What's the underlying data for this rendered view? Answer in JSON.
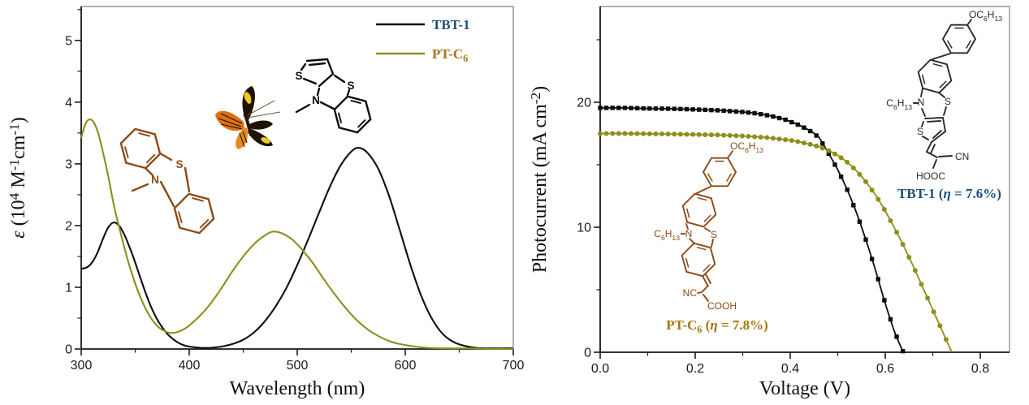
{
  "colors": {
    "axis": "#1a1a1a",
    "frame": "#7d7d7d",
    "black": "#0d0d0d",
    "olive": "#8e8e1c",
    "navy": "#1f4e79",
    "gold": "#a6760e",
    "brown": "#8b4a16",
    "dark": "#2a2a2a"
  },
  "butterfly": {
    "dark": "#1c1206",
    "orange": "#dd7110",
    "orange2": "#e8891a",
    "yellow": "#f3c91b",
    "body": "#241607",
    "antenna": "#6b5a35"
  },
  "legend": {
    "items": [
      {
        "label": "TBT-1",
        "text_color_key": "navy",
        "line_color_key": "black"
      },
      {
        "label": "PT-C_{6}",
        "text_color_key": "gold",
        "line_color_key": "olive"
      }
    ]
  },
  "annotations": {
    "tbt1": {
      "text": "TBT-1 (~{η} = 7.6%)",
      "efficiency": "7.6%"
    },
    "ptc6": {
      "text": "PT-C_{6} (~{η} = 7.8%)",
      "efficiency": "7.8%"
    }
  },
  "structures": {
    "left_ptz": {
      "n": "N",
      "s": "S"
    },
    "left_tbt": {
      "s_thiophene": "S",
      "s_thiazine": "S",
      "n": "N"
    },
    "right_tbt1": {
      "oc6h13": "OC_{6}H_{13}",
      "c6h13": "C_{6}H_{13}",
      "n": "N",
      "s_thiazine": "S",
      "s_thiophene": "S",
      "cn": "CN",
      "hooc": "HOOC"
    },
    "right_ptc6": {
      "oc6h13": "OC_{6}H_{13}",
      "c6h13": "C_{6}H_{13}",
      "n": "N",
      "s": "S",
      "nc": "NC",
      "cooh": "COOH"
    }
  },
  "chart_data": [
    {
      "id": "absorption",
      "type": "line",
      "title": "",
      "xlabel": "Wavelength (nm)",
      "ylabel": "~{ε}  (10^{4} M^{-1}cm^{-1})",
      "xlim": [
        300,
        700
      ],
      "ylim": [
        0,
        5.55
      ],
      "xticks": [
        300,
        400,
        500,
        600,
        700
      ],
      "xtick_labels": [
        "300",
        "400",
        "500",
        "600",
        "700"
      ],
      "xminor": [
        350,
        450,
        550,
        650
      ],
      "yticks": [
        0,
        1,
        2,
        3,
        4,
        5
      ],
      "ytick_labels": [
        "0",
        "1",
        "2",
        "3",
        "4",
        "5"
      ],
      "yminor": [
        0.5,
        1.5,
        2.5,
        3.5,
        4.5,
        5.5
      ],
      "grid": false,
      "legend_position": "top-right-inside",
      "series": [
        {
          "name": "TBT-1",
          "color_key": "black",
          "line_width": 2.1,
          "marker": "none",
          "points": [
            [
              300,
              1.3
            ],
            [
              305,
              1.32
            ],
            [
              310,
              1.4
            ],
            [
              315,
              1.56
            ],
            [
              320,
              1.78
            ],
            [
              325,
              1.97
            ],
            [
              330,
              2.05
            ],
            [
              335,
              2.0
            ],
            [
              340,
              1.85
            ],
            [
              345,
              1.64
            ],
            [
              350,
              1.4
            ],
            [
              355,
              1.14
            ],
            [
              360,
              0.89
            ],
            [
              365,
              0.67
            ],
            [
              370,
              0.49
            ],
            [
              375,
              0.35
            ],
            [
              380,
              0.24
            ],
            [
              385,
              0.16
            ],
            [
              390,
              0.1
            ],
            [
              395,
              0.06
            ],
            [
              400,
              0.04
            ],
            [
              410,
              0.02
            ],
            [
              420,
              0.02
            ],
            [
              430,
              0.04
            ],
            [
              440,
              0.08
            ],
            [
              450,
              0.15
            ],
            [
              460,
              0.27
            ],
            [
              470,
              0.45
            ],
            [
              480,
              0.69
            ],
            [
              490,
              0.99
            ],
            [
              500,
              1.36
            ],
            [
              510,
              1.77
            ],
            [
              520,
              2.2
            ],
            [
              530,
              2.62
            ],
            [
              540,
              2.97
            ],
            [
              550,
              3.2
            ],
            [
              557,
              3.26
            ],
            [
              565,
              3.18
            ],
            [
              575,
              2.92
            ],
            [
              585,
              2.48
            ],
            [
              595,
              1.92
            ],
            [
              605,
              1.35
            ],
            [
              615,
              0.85
            ],
            [
              625,
              0.48
            ],
            [
              635,
              0.24
            ],
            [
              645,
              0.11
            ],
            [
              655,
              0.05
            ],
            [
              665,
              0.02
            ],
            [
              680,
              0.01
            ],
            [
              700,
              0.01
            ]
          ]
        },
        {
          "name": "PT-C_{6}",
          "color_key": "olive",
          "line_width": 2.1,
          "marker": "none",
          "points": [
            [
              300,
              3.42
            ],
            [
              304,
              3.65
            ],
            [
              308,
              3.72
            ],
            [
              312,
              3.66
            ],
            [
              316,
              3.48
            ],
            [
              320,
              3.2
            ],
            [
              325,
              2.8
            ],
            [
              330,
              2.35
            ],
            [
              335,
              1.98
            ],
            [
              340,
              1.64
            ],
            [
              345,
              1.33
            ],
            [
              350,
              1.06
            ],
            [
              355,
              0.83
            ],
            [
              360,
              0.64
            ],
            [
              365,
              0.49
            ],
            [
              370,
              0.38
            ],
            [
              375,
              0.31
            ],
            [
              380,
              0.27
            ],
            [
              385,
              0.26
            ],
            [
              390,
              0.28
            ],
            [
              395,
              0.32
            ],
            [
              400,
              0.38
            ],
            [
              410,
              0.54
            ],
            [
              420,
              0.74
            ],
            [
              430,
              0.99
            ],
            [
              440,
              1.26
            ],
            [
              450,
              1.5
            ],
            [
              460,
              1.7
            ],
            [
              470,
              1.84
            ],
            [
              477,
              1.9
            ],
            [
              485,
              1.88
            ],
            [
              495,
              1.78
            ],
            [
              505,
              1.6
            ],
            [
              515,
              1.38
            ],
            [
              525,
              1.12
            ],
            [
              535,
              0.88
            ],
            [
              545,
              0.66
            ],
            [
              555,
              0.47
            ],
            [
              565,
              0.32
            ],
            [
              575,
              0.21
            ],
            [
              585,
              0.13
            ],
            [
              595,
              0.08
            ],
            [
              605,
              0.05
            ],
            [
              620,
              0.02
            ],
            [
              640,
              0.01
            ],
            [
              660,
              0.01
            ],
            [
              680,
              0.0
            ],
            [
              700,
              0.0
            ]
          ]
        }
      ]
    },
    {
      "id": "jv",
      "type": "line",
      "title": "",
      "xlabel": "Voltage (V)",
      "ylabel": "Photocurrent (mA cm^{-2})",
      "xlim": [
        0,
        0.8615
      ],
      "ylim": [
        0,
        27.66
      ],
      "xticks": [
        0,
        0.2,
        0.4,
        0.6,
        0.8
      ],
      "xtick_labels": [
        "0.0",
        "0.2",
        "0.4",
        "0.6",
        "0.8"
      ],
      "xminor": [
        0.1,
        0.3,
        0.5,
        0.7
      ],
      "yticks": [
        0,
        10,
        20
      ],
      "ytick_labels": [
        "0",
        "10",
        "20"
      ],
      "yminor": [
        5,
        15,
        25
      ],
      "grid": false,
      "series": [
        {
          "name": "TBT-1",
          "color_key": "black",
          "line_width": 1.8,
          "marker": "square",
          "marker_step": 0.013,
          "jsc": 19.5,
          "voc": 0.64,
          "points": [
            [
              0.0,
              19.55
            ],
            [
              0.05,
              19.55
            ],
            [
              0.1,
              19.5
            ],
            [
              0.15,
              19.48
            ],
            [
              0.2,
              19.42
            ],
            [
              0.25,
              19.35
            ],
            [
              0.3,
              19.22
            ],
            [
              0.33,
              19.1
            ],
            [
              0.36,
              18.9
            ],
            [
              0.39,
              18.6
            ],
            [
              0.42,
              18.15
            ],
            [
              0.44,
              17.75
            ],
            [
              0.46,
              17.2
            ],
            [
              0.48,
              15.95
            ],
            [
              0.5,
              14.6
            ],
            [
              0.52,
              13.0
            ],
            [
              0.54,
              11.1
            ],
            [
              0.56,
              8.9
            ],
            [
              0.58,
              6.5
            ],
            [
              0.6,
              3.9
            ],
            [
              0.62,
              1.6
            ],
            [
              0.638,
              0.0
            ]
          ]
        },
        {
          "name": "PT-C_{6}",
          "color_key": "olive",
          "line_width": 1.8,
          "marker": "circle",
          "marker_step": 0.013,
          "jsc": 17.5,
          "voc": 0.74,
          "points": [
            [
              0.0,
              17.5
            ],
            [
              0.05,
              17.5
            ],
            [
              0.1,
              17.48
            ],
            [
              0.15,
              17.45
            ],
            [
              0.2,
              17.42
            ],
            [
              0.25,
              17.38
            ],
            [
              0.3,
              17.3
            ],
            [
              0.35,
              17.18
            ],
            [
              0.38,
              17.05
            ],
            [
              0.41,
              16.9
            ],
            [
              0.44,
              16.65
            ],
            [
              0.46,
              16.45
            ],
            [
              0.48,
              16.15
            ],
            [
              0.5,
              15.75
            ],
            [
              0.52,
              15.2
            ],
            [
              0.54,
              14.5
            ],
            [
              0.56,
              13.6
            ],
            [
              0.58,
              12.55
            ],
            [
              0.6,
              11.3
            ],
            [
              0.62,
              9.9
            ],
            [
              0.64,
              8.4
            ],
            [
              0.66,
              6.8
            ],
            [
              0.68,
              5.1
            ],
            [
              0.7,
              3.4
            ],
            [
              0.72,
              1.7
            ],
            [
              0.74,
              0.0
            ]
          ]
        }
      ]
    }
  ]
}
